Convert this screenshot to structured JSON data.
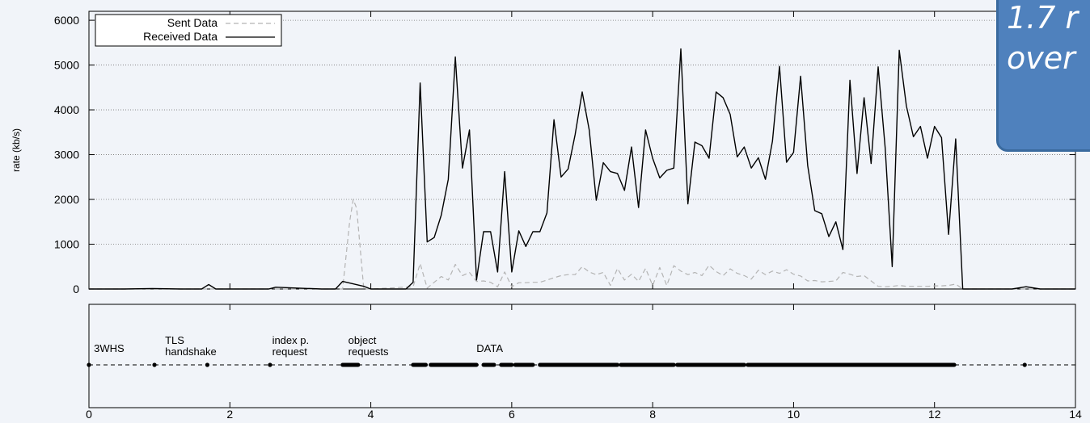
{
  "chart_data": [
    {
      "type": "line",
      "ylabel": "rate (kb/s)",
      "xlim": [
        0,
        14
      ],
      "ylim": [
        0,
        6200
      ],
      "y_ticks": [
        0,
        1000,
        2000,
        3000,
        4000,
        5000,
        6000
      ],
      "grid": "horizontal dotted",
      "legend": {
        "placement": "top-left",
        "entries": [
          "Sent Data",
          "Received Data"
        ]
      },
      "series": [
        {
          "name": "Received Data",
          "color": "#000000",
          "style": "solid",
          "x": [
            0,
            0.5,
            0.9,
            1.3,
            1.6,
            1.7,
            1.8,
            2.3,
            2.55,
            2.65,
            3.3,
            3.5,
            3.6,
            3.9,
            4.0,
            4.5,
            4.6,
            4.7,
            4.8,
            4.9,
            5.0,
            5.1,
            5.2,
            5.3,
            5.4,
            5.5,
            5.6,
            5.7,
            5.8,
            5.9,
            6.0,
            6.1,
            6.2,
            6.3,
            6.4,
            6.5,
            6.6,
            6.7,
            6.8,
            6.9,
            7.0,
            7.1,
            7.2,
            7.3,
            7.4,
            7.5,
            7.6,
            7.7,
            7.8,
            7.9,
            8.0,
            8.1,
            8.2,
            8.3,
            8.4,
            8.5,
            8.6,
            8.7,
            8.8,
            8.9,
            9.0,
            9.1,
            9.2,
            9.3,
            9.4,
            9.5,
            9.6,
            9.7,
            9.8,
            9.9,
            10.0,
            10.1,
            10.2,
            10.3,
            10.4,
            10.5,
            10.6,
            10.7,
            10.8,
            10.9,
            11.0,
            11.1,
            11.2,
            11.3,
            11.4,
            11.5,
            11.6,
            11.7,
            11.8,
            11.9,
            12.0,
            12.1,
            12.2,
            12.3,
            12.4,
            12.9,
            13.1,
            13.3,
            13.5,
            14.0
          ],
          "y": [
            0,
            0,
            10,
            0,
            0,
            100,
            0,
            0,
            0,
            40,
            0,
            0,
            170,
            60,
            0,
            0,
            150,
            4600,
            1050,
            1150,
            1650,
            2450,
            5180,
            2700,
            3550,
            200,
            1280,
            1280,
            380,
            2620,
            380,
            1300,
            950,
            1280,
            1280,
            1700,
            3780,
            2500,
            2680,
            3450,
            4400,
            3550,
            1980,
            2820,
            2620,
            2580,
            2200,
            3170,
            1820,
            3550,
            2920,
            2480,
            2650,
            2700,
            5360,
            1900,
            3280,
            3200,
            2920,
            4400,
            4270,
            3900,
            2950,
            3170,
            2700,
            2930,
            2450,
            3300,
            4970,
            2830,
            3050,
            4750,
            2750,
            1750,
            1680,
            1170,
            1500,
            880,
            4660,
            2580,
            4270,
            2800,
            4960,
            3150,
            500,
            5330,
            4090,
            3400,
            3630,
            2920,
            3630,
            3380,
            1220,
            3350,
            0,
            0,
            0,
            50,
            0,
            0
          ]
        },
        {
          "name": "Sent Data",
          "color": "#b4b4b4",
          "style": "dashed",
          "x": [
            0,
            3.6,
            3.7,
            3.75,
            3.8,
            3.9,
            4.0,
            4.6,
            4.7,
            4.8,
            4.9,
            5.0,
            5.1,
            5.2,
            5.3,
            5.4,
            5.5,
            5.6,
            5.7,
            5.8,
            5.9,
            6.0,
            6.1,
            6.2,
            6.3,
            6.4,
            6.5,
            6.6,
            6.7,
            6.8,
            6.9,
            7.0,
            7.1,
            7.2,
            7.3,
            7.4,
            7.5,
            7.6,
            7.7,
            7.8,
            7.9,
            8.0,
            8.1,
            8.2,
            8.3,
            8.4,
            8.5,
            8.6,
            8.7,
            8.8,
            8.9,
            9.0,
            9.1,
            9.2,
            9.3,
            9.4,
            9.5,
            9.6,
            9.7,
            9.8,
            9.9,
            10.0,
            10.1,
            10.2,
            10.3,
            10.4,
            10.5,
            10.6,
            10.7,
            10.8,
            10.9,
            11.0,
            11.1,
            11.2,
            11.3,
            11.4,
            11.5,
            11.6,
            11.7,
            11.8,
            11.9,
            12.0,
            12.1,
            12.2,
            12.3,
            12.4,
            14.0
          ],
          "y": [
            0,
            0,
            1500,
            2000,
            1800,
            0,
            0,
            50,
            570,
            20,
            150,
            280,
            200,
            550,
            300,
            370,
            170,
            180,
            150,
            50,
            380,
            50,
            140,
            140,
            150,
            150,
            200,
            250,
            300,
            320,
            320,
            500,
            380,
            320,
            370,
            80,
            460,
            200,
            330,
            170,
            460,
            80,
            480,
            80,
            520,
            400,
            320,
            370,
            300,
            530,
            390,
            300,
            450,
            350,
            300,
            220,
            420,
            320,
            400,
            350,
            430,
            330,
            290,
            180,
            190,
            160,
            170,
            180,
            370,
            330,
            280,
            300,
            180,
            60,
            50,
            60,
            80,
            60,
            60,
            60,
            60,
            70,
            70,
            80,
            110,
            0,
            0
          ]
        }
      ]
    },
    {
      "type": "scatter",
      "xlim": [
        0,
        14
      ],
      "x_ticks": [
        0,
        2,
        4,
        6,
        8,
        10,
        12,
        14
      ],
      "annotations": [
        {
          "text": "3WHS",
          "x": 0.07
        },
        {
          "text": "TLS",
          "x": 1.08
        },
        {
          "text": "handshake",
          "x": 1.08
        },
        {
          "text": "index p.",
          "x": 2.6
        },
        {
          "text": "request",
          "x": 2.6
        },
        {
          "text": "object",
          "x": 3.68
        },
        {
          "text": "requests",
          "x": 3.68
        },
        {
          "text": "DATA",
          "x": 5.5
        }
      ],
      "events": {
        "singles": [
          0,
          0.93,
          1.68,
          2.57,
          13.28
        ],
        "bursts": [
          [
            3.6,
            3.82
          ],
          [
            4.6,
            4.78
          ],
          [
            4.85,
            5.5
          ],
          [
            5.6,
            5.75
          ],
          [
            5.85,
            6.0
          ],
          [
            6.05,
            6.3
          ],
          [
            6.4,
            7.5
          ],
          [
            7.55,
            8.3
          ],
          [
            8.35,
            9.3
          ],
          [
            9.35,
            12.28
          ]
        ]
      }
    }
  ],
  "callout": {
    "line1": "1.7 r",
    "line2": "over"
  }
}
